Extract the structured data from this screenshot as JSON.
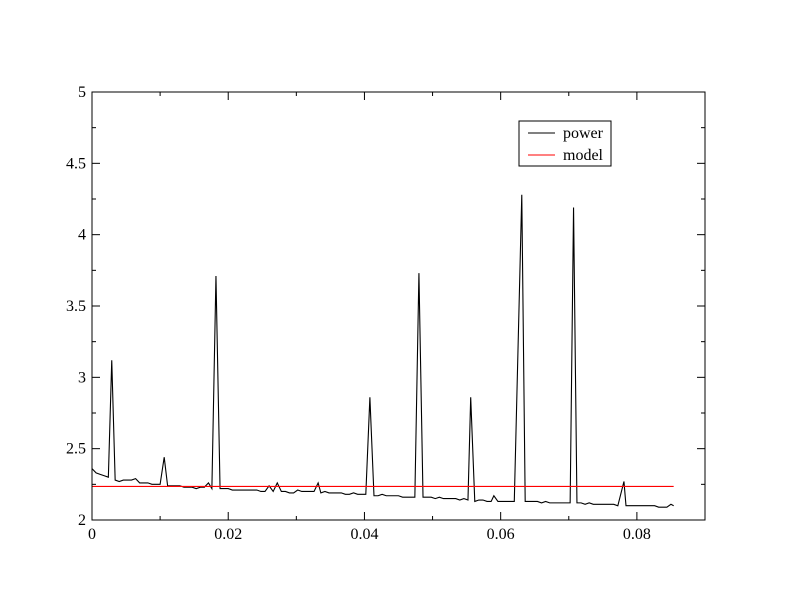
{
  "chart_data": {
    "type": "line",
    "title": "",
    "xlabel": "",
    "ylabel": "",
    "xlim": [
      0,
      0.09
    ],
    "ylim": [
      2,
      5
    ],
    "grid": false,
    "legend_position": "top-right",
    "x_ticks": [
      {
        "value": 0,
        "label": "0"
      },
      {
        "value": 0.02,
        "label": "0.02"
      },
      {
        "value": 0.04,
        "label": "0.04"
      },
      {
        "value": 0.06,
        "label": "0.06"
      },
      {
        "value": 0.08,
        "label": "0.08"
      }
    ],
    "y_ticks": [
      {
        "value": 2,
        "label": "2"
      },
      {
        "value": 2.5,
        "label": "2.5"
      },
      {
        "value": 3,
        "label": "3"
      },
      {
        "value": 3.5,
        "label": "3.5"
      },
      {
        "value": 4,
        "label": "4"
      },
      {
        "value": 4.5,
        "label": "4.5"
      },
      {
        "value": 5,
        "label": "5"
      }
    ],
    "series": [
      {
        "name": "power",
        "color": "#000000",
        "points": [
          [
            0.0,
            2.36
          ],
          [
            0.0006,
            2.33
          ],
          [
            0.0012,
            2.32
          ],
          [
            0.0018,
            2.31
          ],
          [
            0.0024,
            2.3
          ],
          [
            0.0029,
            3.12
          ],
          [
            0.0034,
            2.28
          ],
          [
            0.004,
            2.27
          ],
          [
            0.0046,
            2.28
          ],
          [
            0.0052,
            2.28
          ],
          [
            0.0058,
            2.28
          ],
          [
            0.0064,
            2.29
          ],
          [
            0.007,
            2.26
          ],
          [
            0.0076,
            2.26
          ],
          [
            0.0082,
            2.26
          ],
          [
            0.0088,
            2.25
          ],
          [
            0.0094,
            2.25
          ],
          [
            0.01,
            2.25
          ],
          [
            0.0106,
            2.44
          ],
          [
            0.0111,
            2.24
          ],
          [
            0.0117,
            2.24
          ],
          [
            0.0123,
            2.24
          ],
          [
            0.0129,
            2.24
          ],
          [
            0.0135,
            2.23
          ],
          [
            0.0141,
            2.23
          ],
          [
            0.0147,
            2.23
          ],
          [
            0.0153,
            2.22
          ],
          [
            0.0159,
            2.23
          ],
          [
            0.0165,
            2.23
          ],
          [
            0.0171,
            2.26
          ],
          [
            0.0176,
            2.22
          ],
          [
            0.0182,
            3.71
          ],
          [
            0.0188,
            2.22
          ],
          [
            0.0194,
            2.22
          ],
          [
            0.02,
            2.22
          ],
          [
            0.0206,
            2.21
          ],
          [
            0.0212,
            2.21
          ],
          [
            0.0218,
            2.21
          ],
          [
            0.0224,
            2.21
          ],
          [
            0.023,
            2.21
          ],
          [
            0.0236,
            2.21
          ],
          [
            0.0242,
            2.21
          ],
          [
            0.0248,
            2.2
          ],
          [
            0.0254,
            2.2
          ],
          [
            0.026,
            2.24
          ],
          [
            0.0266,
            2.2
          ],
          [
            0.0272,
            2.26
          ],
          [
            0.0278,
            2.2
          ],
          [
            0.0284,
            2.2
          ],
          [
            0.029,
            2.19
          ],
          [
            0.0296,
            2.19
          ],
          [
            0.0302,
            2.21
          ],
          [
            0.0308,
            2.2
          ],
          [
            0.0314,
            2.2
          ],
          [
            0.032,
            2.2
          ],
          [
            0.0326,
            2.2
          ],
          [
            0.0332,
            2.26
          ],
          [
            0.0336,
            2.19
          ],
          [
            0.0342,
            2.2
          ],
          [
            0.0348,
            2.19
          ],
          [
            0.0354,
            2.19
          ],
          [
            0.036,
            2.19
          ],
          [
            0.0366,
            2.19
          ],
          [
            0.0372,
            2.18
          ],
          [
            0.0378,
            2.18
          ],
          [
            0.0384,
            2.19
          ],
          [
            0.039,
            2.18
          ],
          [
            0.0396,
            2.18
          ],
          [
            0.0402,
            2.18
          ],
          [
            0.0408,
            2.86
          ],
          [
            0.0414,
            2.17
          ],
          [
            0.042,
            2.17
          ],
          [
            0.0426,
            2.18
          ],
          [
            0.0432,
            2.17
          ],
          [
            0.0438,
            2.17
          ],
          [
            0.0444,
            2.17
          ],
          [
            0.045,
            2.17
          ],
          [
            0.0456,
            2.16
          ],
          [
            0.0462,
            2.16
          ],
          [
            0.0468,
            2.16
          ],
          [
            0.0474,
            2.16
          ],
          [
            0.048,
            3.73
          ],
          [
            0.0486,
            2.16
          ],
          [
            0.0492,
            2.16
          ],
          [
            0.0498,
            2.16
          ],
          [
            0.0504,
            2.15
          ],
          [
            0.051,
            2.16
          ],
          [
            0.0516,
            2.15
          ],
          [
            0.0522,
            2.15
          ],
          [
            0.0528,
            2.15
          ],
          [
            0.0534,
            2.15
          ],
          [
            0.054,
            2.14
          ],
          [
            0.0546,
            2.15
          ],
          [
            0.0552,
            2.14
          ],
          [
            0.0556,
            2.86
          ],
          [
            0.0562,
            2.13
          ],
          [
            0.0568,
            2.14
          ],
          [
            0.0574,
            2.14
          ],
          [
            0.058,
            2.13
          ],
          [
            0.0586,
            2.13
          ],
          [
            0.059,
            2.17
          ],
          [
            0.0596,
            2.13
          ],
          [
            0.0602,
            2.13
          ],
          [
            0.0608,
            2.13
          ],
          [
            0.0614,
            2.13
          ],
          [
            0.062,
            2.13
          ],
          [
            0.0631,
            4.28
          ],
          [
            0.0636,
            2.13
          ],
          [
            0.0642,
            2.13
          ],
          [
            0.0648,
            2.13
          ],
          [
            0.0654,
            2.13
          ],
          [
            0.066,
            2.12
          ],
          [
            0.0666,
            2.13
          ],
          [
            0.0672,
            2.12
          ],
          [
            0.0678,
            2.12
          ],
          [
            0.0684,
            2.12
          ],
          [
            0.069,
            2.12
          ],
          [
            0.0696,
            2.12
          ],
          [
            0.0702,
            2.12
          ],
          [
            0.0707,
            4.19
          ],
          [
            0.0712,
            2.12
          ],
          [
            0.0718,
            2.12
          ],
          [
            0.0724,
            2.11
          ],
          [
            0.073,
            2.12
          ],
          [
            0.0736,
            2.11
          ],
          [
            0.0742,
            2.11
          ],
          [
            0.0748,
            2.11
          ],
          [
            0.0754,
            2.11
          ],
          [
            0.076,
            2.11
          ],
          [
            0.0766,
            2.11
          ],
          [
            0.0772,
            2.1
          ],
          [
            0.0781,
            2.27
          ],
          [
            0.0784,
            2.1
          ],
          [
            0.079,
            2.1
          ],
          [
            0.0796,
            2.1
          ],
          [
            0.0802,
            2.1
          ],
          [
            0.0808,
            2.1
          ],
          [
            0.0814,
            2.1
          ],
          [
            0.082,
            2.1
          ],
          [
            0.0826,
            2.1
          ],
          [
            0.0832,
            2.09
          ],
          [
            0.0838,
            2.09
          ],
          [
            0.0844,
            2.09
          ],
          [
            0.085,
            2.11
          ],
          [
            0.0854,
            2.1
          ]
        ]
      },
      {
        "name": "model",
        "color": "#ff0000",
        "points": [
          [
            0.0,
            2.235
          ],
          [
            0.0854,
            2.235
          ]
        ]
      }
    ]
  }
}
